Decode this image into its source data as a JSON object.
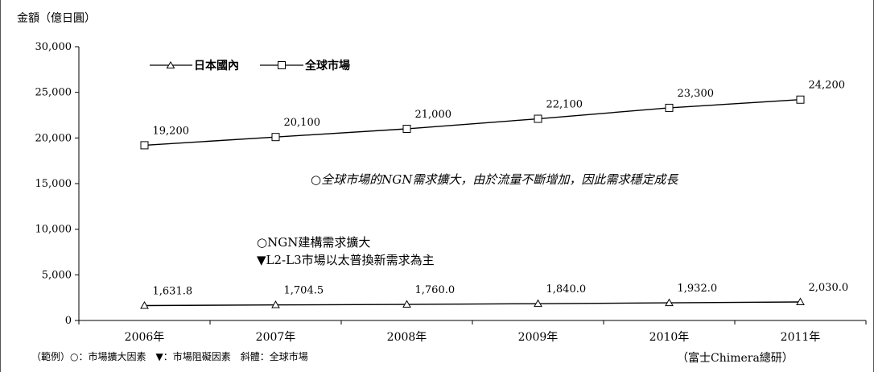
{
  "chart_data": {
    "type": "line",
    "ylabel": "金額（億日圓）",
    "categories": [
      "2006年",
      "2007年",
      "2008年",
      "2009年",
      "2010年",
      "2011年"
    ],
    "ylim": [
      0,
      30000
    ],
    "yticks": [
      "0",
      "5,000",
      "10,000",
      "15,000",
      "20,000",
      "25,000",
      "30,000"
    ],
    "series": [
      {
        "name": "日本國內",
        "marker": "triangle",
        "values": [
          1631.8,
          1704.5,
          1760.0,
          1840.0,
          1932.0,
          2030.0
        ],
        "labels": [
          "1,631.8",
          "1,704.5",
          "1,760.0",
          "1,840.0",
          "1,932.0",
          "2,030.0"
        ]
      },
      {
        "name": "全球市場",
        "marker": "square",
        "values": [
          19200,
          20100,
          21000,
          22100,
          23300,
          24200
        ],
        "labels": [
          "19,200",
          "20,100",
          "21,000",
          "22,100",
          "23,300",
          "24,200"
        ]
      }
    ],
    "legend": "top-left",
    "grid": false,
    "annotations": {
      "global": "○全球市場的NGN需求擴大，由於流量不斷增加，因此需求穩定成長",
      "ngn": "○NGN建構需求擴大",
      "l2l3": "▼L2-L3市場以太普換新需求為主"
    },
    "footnote": "（範例）○：市場擴大因素　▼：市場阻礙因素　斜體：全球市場",
    "source": "（富士Chimera總研）",
    "line_color": "#000000"
  }
}
